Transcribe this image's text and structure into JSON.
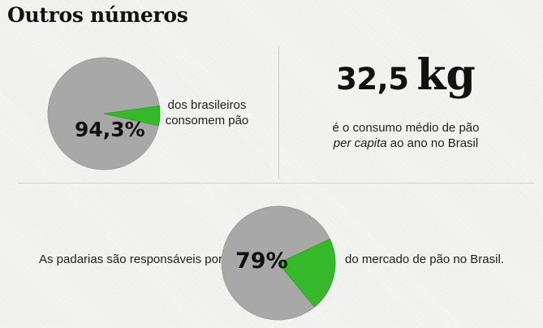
{
  "title": "Outros números",
  "stats": {
    "bread_consumers": {
      "value_label": "94,3%",
      "description_line1": "dos brasileiros",
      "description_line2": "consomem pão"
    },
    "per_capita": {
      "number": "32,5",
      "unit": "kg",
      "line1": "é o consumo médio de pão",
      "line2_italic": "per capita",
      "line2_rest": " ao ano no Brasil"
    },
    "bakeries": {
      "prefix": "As padarias são responsáveis por",
      "value_label": "79%",
      "suffix": "do mercado de pão no Brasil."
    }
  },
  "colors": {
    "pie_base": "#a8a8a8",
    "pie_highlight": "#35b82a",
    "pie_outline": "#9a9a9a"
  },
  "chart_data": [
    {
      "type": "pie",
      "title": "",
      "slices": [
        {
          "label": "",
          "value": 94.3,
          "color": "#a8a8a8"
        },
        {
          "label": "",
          "value": 5.7,
          "color": "#35b82a"
        }
      ],
      "start_angle_deg": 8
    },
    {
      "type": "pie",
      "title": "",
      "slices": [
        {
          "label": "",
          "value": 79,
          "color": "#a8a8a8"
        },
        {
          "label": "",
          "value": 21,
          "color": "#35b82a"
        }
      ],
      "start_angle_deg": 25
    }
  ]
}
